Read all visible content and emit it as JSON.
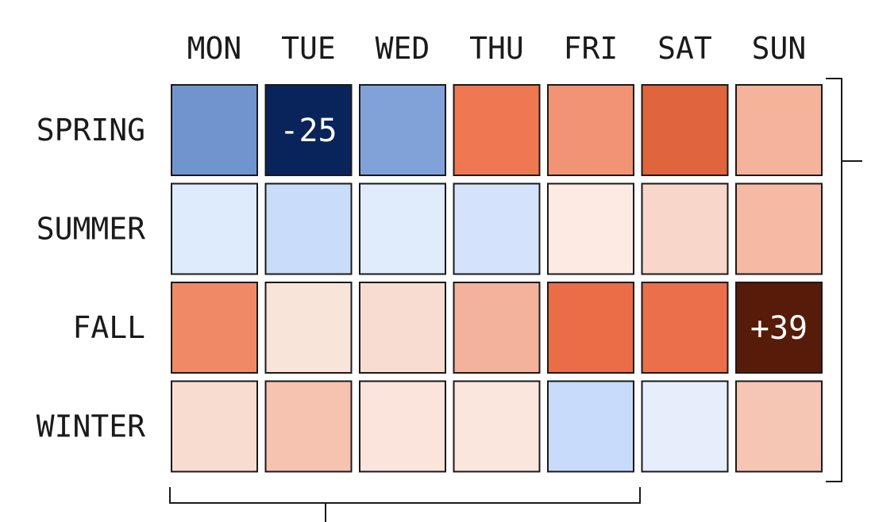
{
  "chart_data": {
    "type": "heatmap",
    "title": "",
    "xlabel": "",
    "ylabel": "",
    "columns": [
      "MON",
      "TUE",
      "WED",
      "THU",
      "FRI",
      "SAT",
      "SUN"
    ],
    "rows": [
      "SPRING",
      "SUMMER",
      "FALL",
      "WINTER"
    ],
    "values": [
      [
        -14,
        -25,
        -12,
        20,
        15,
        24,
        9
      ],
      [
        -3,
        -6,
        -3,
        -5,
        2,
        5,
        10
      ],
      [
        18,
        3,
        5,
        11,
        22,
        21,
        39
      ],
      [
        5,
        8,
        4,
        4,
        -6,
        -2,
        8
      ]
    ],
    "cell_labels": [
      {
        "row": 0,
        "col": 1,
        "text": "-25"
      },
      {
        "row": 2,
        "col": 6,
        "text": "+39"
      }
    ],
    "cell_colors": [
      [
        "#7194cf",
        "#08245a",
        "#80a2d8",
        "#ef7752",
        "#f19374",
        "#e0643c",
        "#f5b39c"
      ],
      [
        "#deebfc",
        "#c9dcfa",
        "#e0ebfc",
        "#d4e3fb",
        "#fdeae3",
        "#f8d6c9",
        "#f6b9a3"
      ],
      [
        "#f08a66",
        "#f9e4da",
        "#f9dcd1",
        "#f3b29b",
        "#eb6d47",
        "#ec6f4b",
        "#561b09"
      ],
      [
        "#f9dcd0",
        "#f6c3b1",
        "#fae4db",
        "#fae6dd",
        "#c9dbfa",
        "#e6eefc",
        "#f6c6b4"
      ]
    ],
    "colors": {
      "negative": "#08245a",
      "neutral": "#f7f7f7",
      "positive": "#561b09"
    },
    "legend": "none",
    "grid": false
  }
}
